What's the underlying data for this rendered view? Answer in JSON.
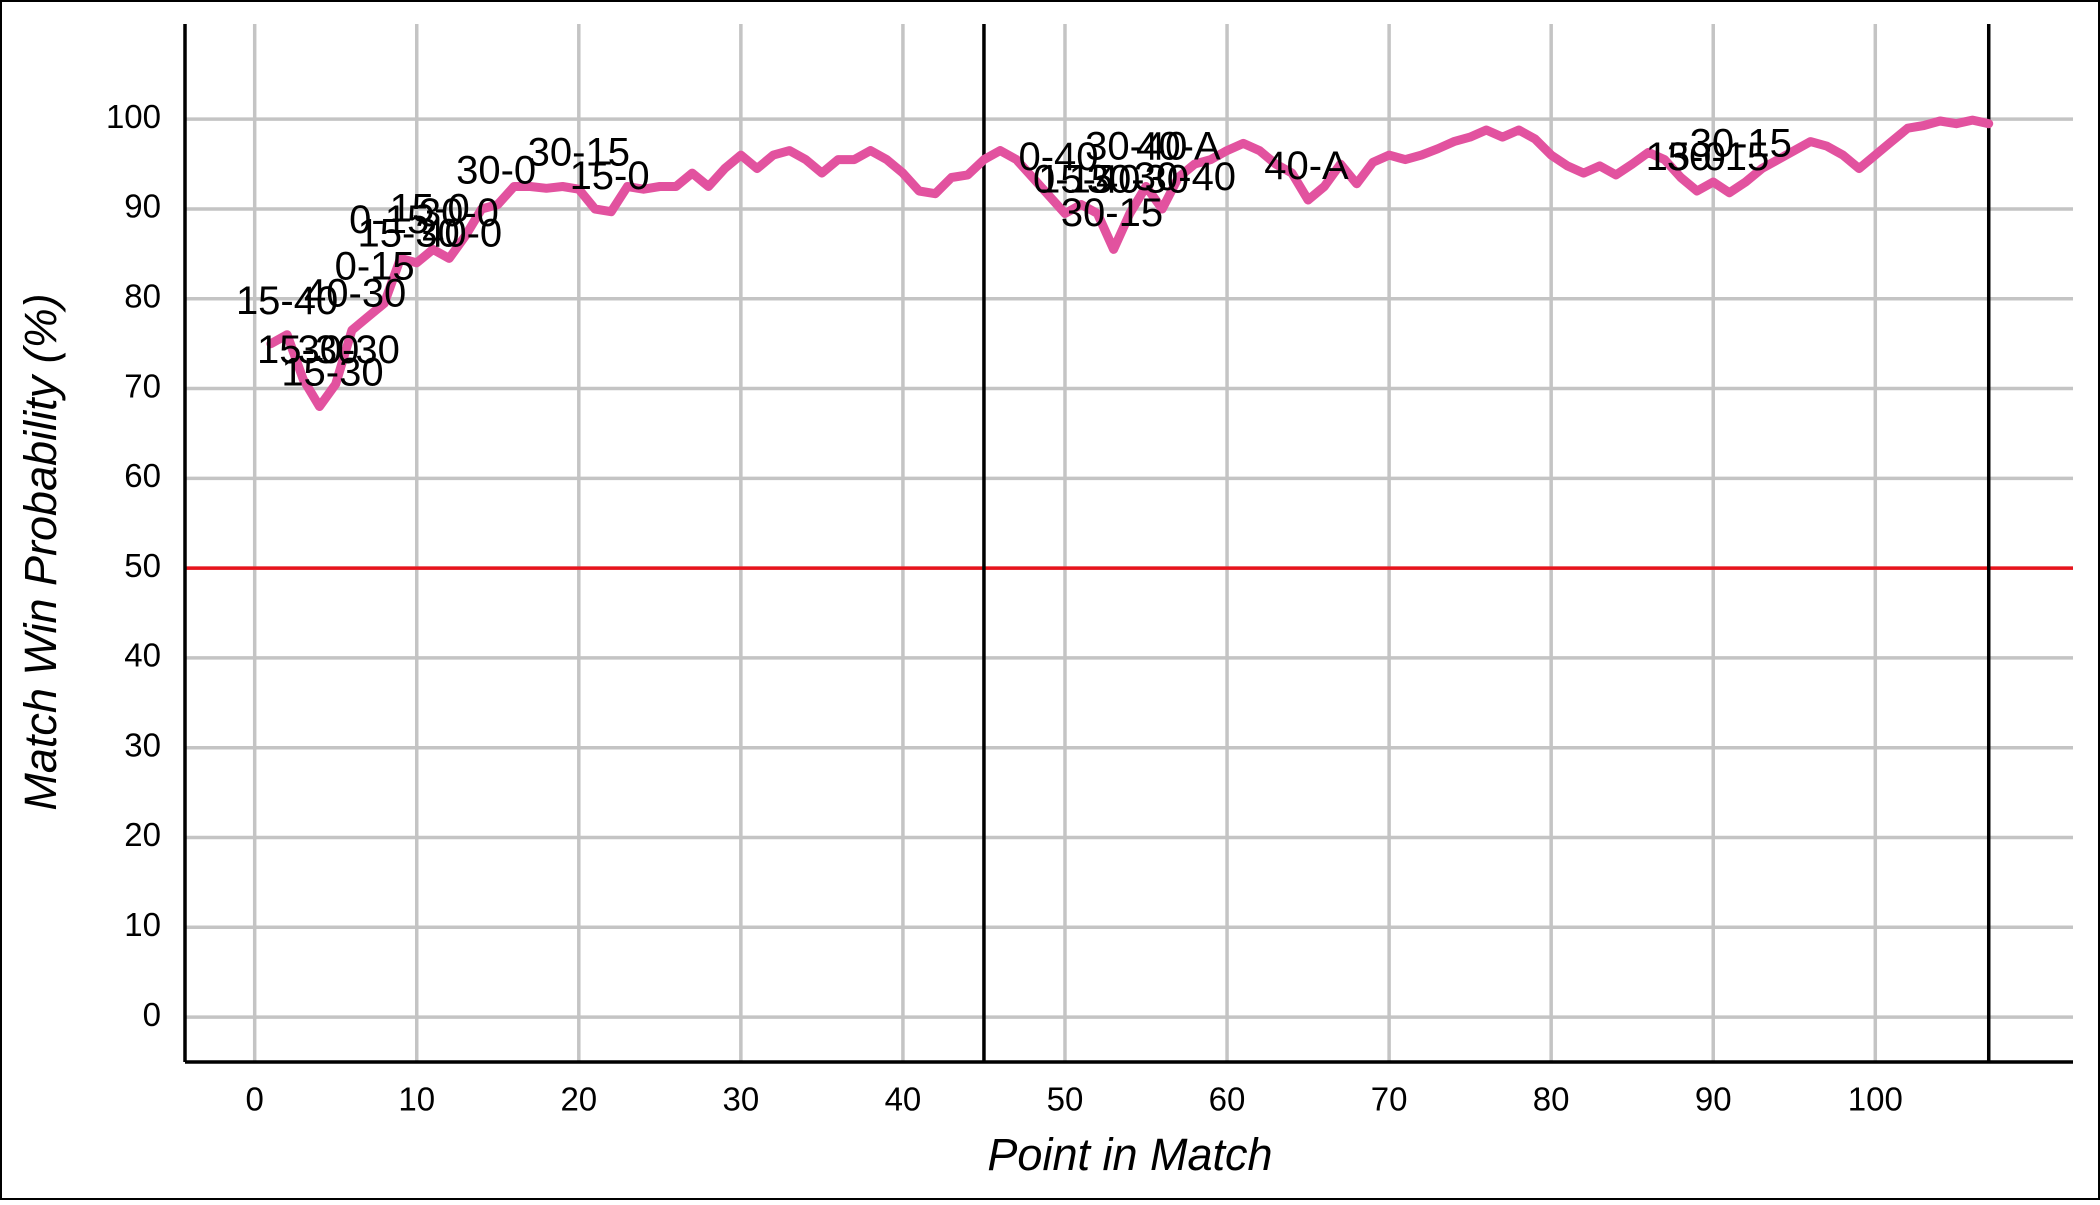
{
  "chart_data": {
    "type": "line",
    "x_label": "Point in Match",
    "y_label": "Match Win Probability (%)",
    "color": "#e2529f",
    "x": [
      1,
      2,
      3,
      4,
      5,
      6,
      7,
      8,
      9,
      10,
      11,
      12,
      13,
      14,
      15,
      16,
      17,
      18,
      19,
      20,
      21,
      22,
      23,
      24,
      25,
      26,
      27,
      28,
      29,
      30,
      31,
      32,
      33,
      34,
      35,
      36,
      37,
      38,
      39,
      40,
      41,
      42,
      43,
      44,
      45,
      46,
      47,
      48,
      49,
      50,
      51,
      52,
      53,
      54,
      55,
      56,
      57,
      58,
      59,
      60,
      61,
      62,
      63,
      64,
      65,
      66,
      67,
      68,
      69,
      70,
      71,
      72,
      73,
      74,
      75,
      76,
      77,
      78,
      79,
      80,
      81,
      82,
      83,
      84,
      85,
      86,
      87,
      88,
      89,
      90,
      91,
      92,
      93,
      94,
      95,
      96,
      97,
      98,
      99,
      100,
      101,
      102,
      103,
      104,
      105,
      106,
      107
    ],
    "values": [
      75,
      76,
      71,
      68,
      70.5,
      76.5,
      78,
      79.5,
      84.5,
      84,
      85.5,
      84.5,
      87,
      90,
      90.5,
      92.5,
      92.5,
      92.3,
      92.5,
      92.2,
      90,
      89.7,
      92.5,
      92.2,
      92.5,
      92.5,
      94,
      92.5,
      94.5,
      96,
      94.5,
      96,
      96.5,
      95.5,
      94,
      95.5,
      95.5,
      96.5,
      95.5,
      94,
      92,
      91.7,
      93.5,
      93.8,
      95.5,
      96.5,
      95.5,
      93.5,
      91.5,
      89.5,
      90.5,
      89.5,
      85.5,
      89.5,
      92.5,
      90,
      93.5,
      95,
      95.5,
      96.5,
      97.3,
      96.5,
      95,
      94,
      91,
      92.5,
      95,
      92.8,
      95.2,
      96,
      95.5,
      96,
      96.7,
      97.5,
      98,
      98.8,
      98,
      98.8,
      97.8,
      96,
      94.8,
      94,
      94.8,
      93.8,
      95,
      96.3,
      95.5,
      93.5,
      92,
      93,
      91.8,
      93,
      94.5,
      95.5,
      96.5,
      97.5,
      97,
      96,
      94.5,
      96,
      97.5,
      99,
      99.3,
      99.8,
      99.5,
      99.9,
      99.5
    ],
    "xlim": [
      -4.3,
      112.2
    ],
    "ylim": [
      -5,
      110.6
    ],
    "xticks": [
      0,
      10,
      20,
      30,
      40,
      50,
      60,
      70,
      80,
      90,
      100
    ],
    "yticks": [
      0,
      10,
      20,
      30,
      40,
      50,
      60,
      70,
      80,
      90,
      100
    ],
    "grid": true,
    "hline": 50,
    "vlines": [
      45,
      107
    ],
    "annotations": [
      {
        "text": "15-40",
        "x": 2,
        "y": 79.5
      },
      {
        "text": "40-30",
        "x": 6.2,
        "y": 80.3
      },
      {
        "text": "15-30",
        "x": 3.3,
        "y": 74
      },
      {
        "text": "30-30",
        "x": 5.8,
        "y": 74
      },
      {
        "text": "15-30",
        "x": 4.8,
        "y": 71.5
      },
      {
        "text": "0-15",
        "x": 7.4,
        "y": 83.3
      },
      {
        "text": "15-30",
        "x": 9.5,
        "y": 87
      },
      {
        "text": "0-15",
        "x": 8.3,
        "y": 88.5
      },
      {
        "text": "15-0",
        "x": 10.8,
        "y": 89.8
      },
      {
        "text": "30-0",
        "x": 12.6,
        "y": 89.3
      },
      {
        "text": "40-0",
        "x": 12.8,
        "y": 87
      },
      {
        "text": "30-0",
        "x": 14.9,
        "y": 94
      },
      {
        "text": "30-15",
        "x": 20,
        "y": 96
      },
      {
        "text": "15-0",
        "x": 21.9,
        "y": 93.4
      },
      {
        "text": "0-40",
        "x": 49.6,
        "y": 95.5
      },
      {
        "text": "15-40",
        "x": 51.5,
        "y": 93
      },
      {
        "text": "0-15",
        "x": 50.5,
        "y": 93
      },
      {
        "text": "30-30",
        "x": 54.5,
        "y": 93
      },
      {
        "text": "30-40",
        "x": 57.4,
        "y": 93.3
      },
      {
        "text": "30-15",
        "x": 52.9,
        "y": 89.3
      },
      {
        "text": "30-40",
        "x": 54.4,
        "y": 96.7
      },
      {
        "text": "40-A",
        "x": 57,
        "y": 96.7
      },
      {
        "text": "40-A",
        "x": 64.9,
        "y": 94.5
      },
      {
        "text": "15-0",
        "x": 88.3,
        "y": 95.5
      },
      {
        "text": "30-15",
        "x": 90.3,
        "y": 95.5
      },
      {
        "text": "30-15",
        "x": 91.7,
        "y": 97
      }
    ]
  }
}
